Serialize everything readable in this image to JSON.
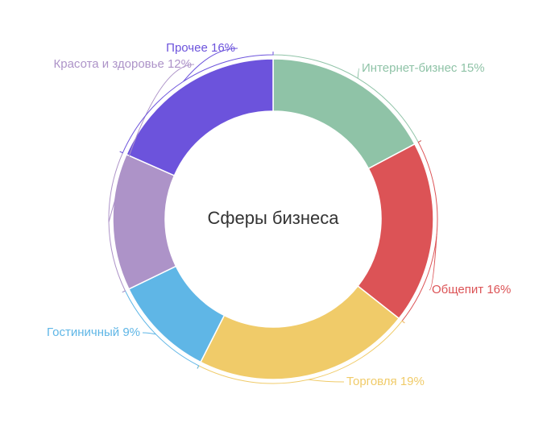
{
  "chart_data": {
    "type": "pie",
    "title": "Сферы бизнеса",
    "categories": [
      "Интернет-бизнес",
      "Общепит",
      "Торговля",
      "Гостиничный",
      "Красота и здоровье",
      "Прочее"
    ],
    "values": [
      15,
      16,
      19,
      9,
      12,
      16
    ],
    "labels": [
      "Интернет-бизнес 15%",
      "Общепит 16%",
      "Торговля 19%",
      "Гостиничный 9%",
      "Красота и здоровье 12%",
      "Прочее 16%"
    ],
    "colors": [
      "#8fc3a7",
      "#dc5356",
      "#f0cb69",
      "#5fb6e6",
      "#ad93c8",
      "#6c53dc"
    ],
    "legend": "none"
  }
}
